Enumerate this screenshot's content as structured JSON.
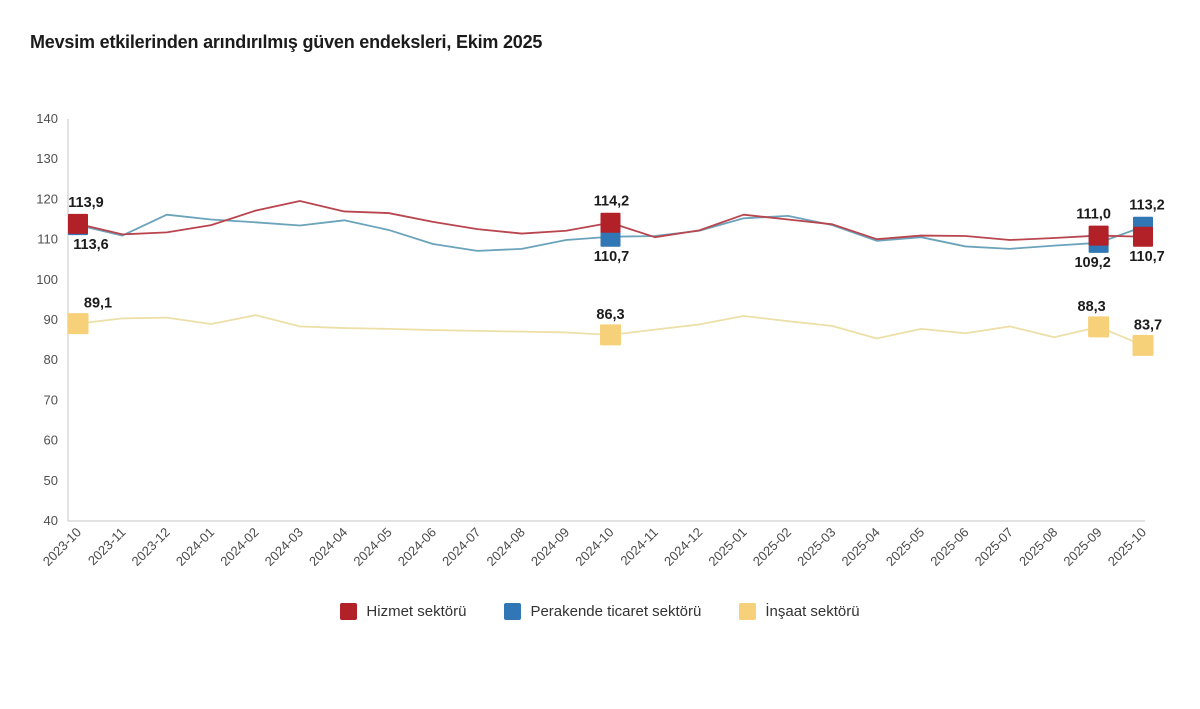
{
  "title": "Mevsim etkilerinden arındırılmış güven endeksleri, Ekim 2025",
  "axis_color": "#d9d9d9",
  "chart_data": {
    "type": "line",
    "title": "Mevsim etkilerinden arındırılmış güven endeksleri, Ekim 2025",
    "x": [
      "2023-10",
      "2023-11",
      "2023-12",
      "2024-01",
      "2024-02",
      "2024-03",
      "2024-04",
      "2024-05",
      "2024-06",
      "2024-07",
      "2024-08",
      "2024-09",
      "2024-10",
      "2024-11",
      "2024-12",
      "2025-01",
      "2025-02",
      "2025-03",
      "2025-04",
      "2025-05",
      "2025-06",
      "2025-07",
      "2025-08",
      "2025-09",
      "2025-10"
    ],
    "ylim": [
      40,
      140
    ],
    "yticks": [
      140,
      130,
      120,
      110,
      100,
      90,
      80,
      70,
      60,
      50,
      40
    ],
    "grid": false,
    "legend_position": "bottom",
    "series": [
      {
        "name": "Hizmet sektörü",
        "color": "#b22028",
        "line_color": "#b9454f",
        "values": [
          113.9,
          111.3,
          111.8,
          113.6,
          117.2,
          119.6,
          117.0,
          116.6,
          114.4,
          112.6,
          111.5,
          112.2,
          114.2,
          110.6,
          112.3,
          116.2,
          115.0,
          113.8,
          110.1,
          111.0,
          110.9,
          109.9,
          110.4,
          111.0,
          110.7
        ],
        "annotations": [
          {
            "i": 0,
            "text": "113,9",
            "pos": "above",
            "dx": 8
          },
          {
            "i": 12,
            "text": "114,2",
            "pos": "above",
            "dx": 1
          },
          {
            "i": 23,
            "text": "111,0",
            "pos": "above",
            "dx": -5
          },
          {
            "i": 24,
            "text": "110,7",
            "pos": "below",
            "dx": 4
          }
        ]
      },
      {
        "name": "Perakende ticaret sektörü",
        "color": "#3277b5",
        "line_color": "#6ba3bb",
        "values": [
          113.6,
          111.0,
          116.2,
          115.0,
          114.3,
          113.5,
          114.8,
          112.4,
          108.9,
          107.2,
          107.7,
          109.9,
          110.7,
          110.9,
          112.2,
          115.3,
          115.9,
          113.6,
          109.7,
          110.6,
          108.3,
          107.7,
          108.5,
          109.2,
          113.2
        ],
        "annotations": [
          {
            "i": 0,
            "text": "113,6",
            "pos": "below",
            "dx": 13
          },
          {
            "i": 12,
            "text": "110,7",
            "pos": "below",
            "dx": 1
          },
          {
            "i": 23,
            "text": "109,2",
            "pos": "below",
            "dx": -6
          },
          {
            "i": 24,
            "text": "113,2",
            "pos": "above",
            "dx": 4
          }
        ]
      },
      {
        "name": "İnşaat sektörü",
        "color": "#f6d17a",
        "line_color": "#ece0a8",
        "values": [
          89.1,
          90.4,
          90.6,
          89.0,
          91.2,
          88.4,
          88.0,
          87.8,
          87.5,
          87.3,
          87.1,
          86.9,
          86.3,
          87.6,
          88.9,
          91.0,
          89.7,
          88.5,
          85.4,
          87.8,
          86.7,
          88.4,
          85.7,
          88.3,
          83.7
        ],
        "annotations": [
          {
            "i": 0,
            "text": "89,1",
            "pos": "above",
            "dx": 20
          },
          {
            "i": 12,
            "text": "86,3",
            "pos": "above",
            "dx": 0
          },
          {
            "i": 23,
            "text": "88,3",
            "pos": "above",
            "dx": -7
          },
          {
            "i": 24,
            "text": "83,7",
            "pos": "above",
            "dx": 5
          }
        ]
      }
    ]
  }
}
